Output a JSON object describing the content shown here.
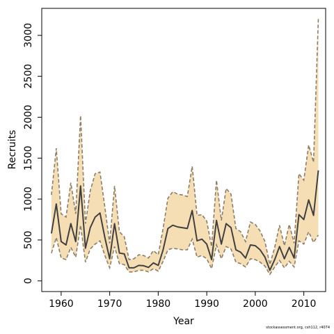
{
  "chart_data": {
    "type": "line",
    "title": "",
    "xlabel": "Year",
    "ylabel": "Recruits",
    "xlim": [
      1956,
      2014.5
    ],
    "ylim": [
      -130,
      3330
    ],
    "xticks": [
      1960,
      1970,
      1980,
      1990,
      2000,
      2010
    ],
    "yticks": [
      0,
      500,
      1000,
      1500,
      2000,
      2500,
      3000
    ],
    "grid": false,
    "legend": "none",
    "colors": {
      "band": "#f5deb3",
      "line": "#404040",
      "bound": "#8c7c6a"
    },
    "x": [
      1958,
      1959,
      1960,
      1961,
      1962,
      1963,
      1964,
      1965,
      1966,
      1967,
      1968,
      1969,
      1970,
      1971,
      1972,
      1973,
      1974,
      1975,
      1976,
      1977,
      1978,
      1979,
      1980,
      1981,
      1982,
      1983,
      1984,
      1985,
      1986,
      1987,
      1988,
      1989,
      1990,
      1991,
      1992,
      1993,
      1994,
      1995,
      1996,
      1997,
      1998,
      1999,
      2000,
      2001,
      2002,
      2003,
      2004,
      2005,
      2006,
      2007,
      2008,
      2009,
      2010,
      2011,
      2012,
      2013
    ],
    "series": [
      {
        "role": "estimate",
        "values": [
          580,
          940,
          480,
          440,
          700,
          480,
          1160,
          400,
          650,
          780,
          830,
          530,
          270,
          700,
          340,
          330,
          160,
          160,
          190,
          185,
          165,
          220,
          190,
          380,
          640,
          680,
          660,
          650,
          640,
          860,
          490,
          510,
          450,
          260,
          740,
          450,
          700,
          650,
          380,
          350,
          280,
          440,
          430,
          380,
          290,
          130,
          260,
          420,
          270,
          410,
          280,
          810,
          750,
          990,
          800,
          1350
        ]
      },
      {
        "role": "lower",
        "values": [
          340,
          530,
          280,
          260,
          410,
          290,
          680,
          230,
          390,
          450,
          490,
          310,
          160,
          420,
          210,
          200,
          110,
          110,
          130,
          130,
          110,
          150,
          120,
          240,
          380,
          400,
          390,
          380,
          380,
          510,
          290,
          310,
          270,
          150,
          440,
          270,
          420,
          390,
          230,
          210,
          170,
          270,
          260,
          230,
          180,
          80,
          170,
          250,
          160,
          240,
          170,
          490,
          450,
          600,
          470,
          560
        ]
      },
      {
        "role": "upper",
        "values": [
          1050,
          1620,
          820,
          780,
          1200,
          820,
          2020,
          700,
          1100,
          1310,
          1330,
          900,
          460,
          1160,
          600,
          540,
          260,
          270,
          320,
          310,
          280,
          370,
          320,
          640,
          1010,
          1090,
          1060,
          1050,
          1030,
          1400,
          800,
          810,
          730,
          420,
          1230,
          740,
          1130,
          1060,
          640,
          600,
          480,
          720,
          690,
          610,
          480,
          200,
          410,
          680,
          430,
          690,
          460,
          1310,
          1230,
          1660,
          1450,
          3200
        ]
      }
    ]
  },
  "footer": {
    "source_note": "stockassessment.org, csh112, r4074"
  }
}
